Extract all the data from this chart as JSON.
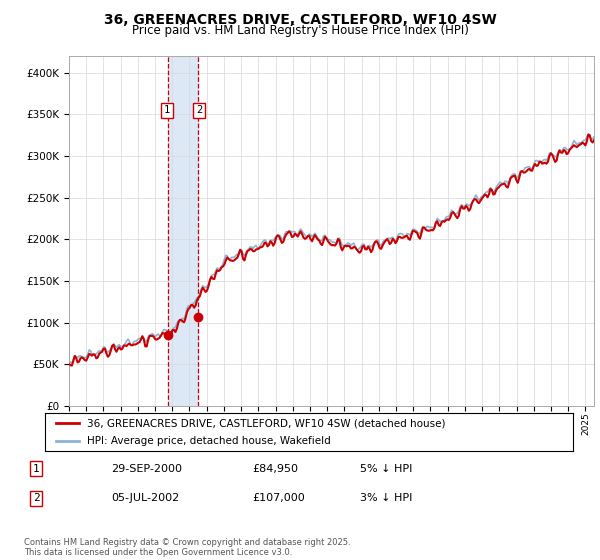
{
  "title": "36, GREENACRES DRIVE, CASTLEFORD, WF10 4SW",
  "subtitle": "Price paid vs. HM Land Registry's House Price Index (HPI)",
  "legend_line1": "36, GREENACRES DRIVE, CASTLEFORD, WF10 4SW (detached house)",
  "legend_line2": "HPI: Average price, detached house, Wakefield",
  "transaction1_date": "29-SEP-2000",
  "transaction1_price": "£84,950",
  "transaction1_hpi": "5% ↓ HPI",
  "transaction2_date": "05-JUL-2002",
  "transaction2_price": "£107,000",
  "transaction2_hpi": "3% ↓ HPI",
  "footer": "Contains HM Land Registry data © Crown copyright and database right 2025.\nThis data is licensed under the Open Government Licence v3.0.",
  "hpi_color": "#8ab4d4",
  "price_color": "#cc0000",
  "vline_color": "#cc0000",
  "span_color": "#dce8f5",
  "ylim": [
    0,
    420000
  ],
  "yticks": [
    0,
    50000,
    100000,
    150000,
    200000,
    250000,
    300000,
    350000,
    400000
  ],
  "xlim_start": 1995.0,
  "xlim_end": 2025.5,
  "t1": 2000.75,
  "t2": 2002.5,
  "p1": 84950,
  "p2": 107000,
  "background_color": "#ffffff",
  "grid_color": "#d8d8d8"
}
